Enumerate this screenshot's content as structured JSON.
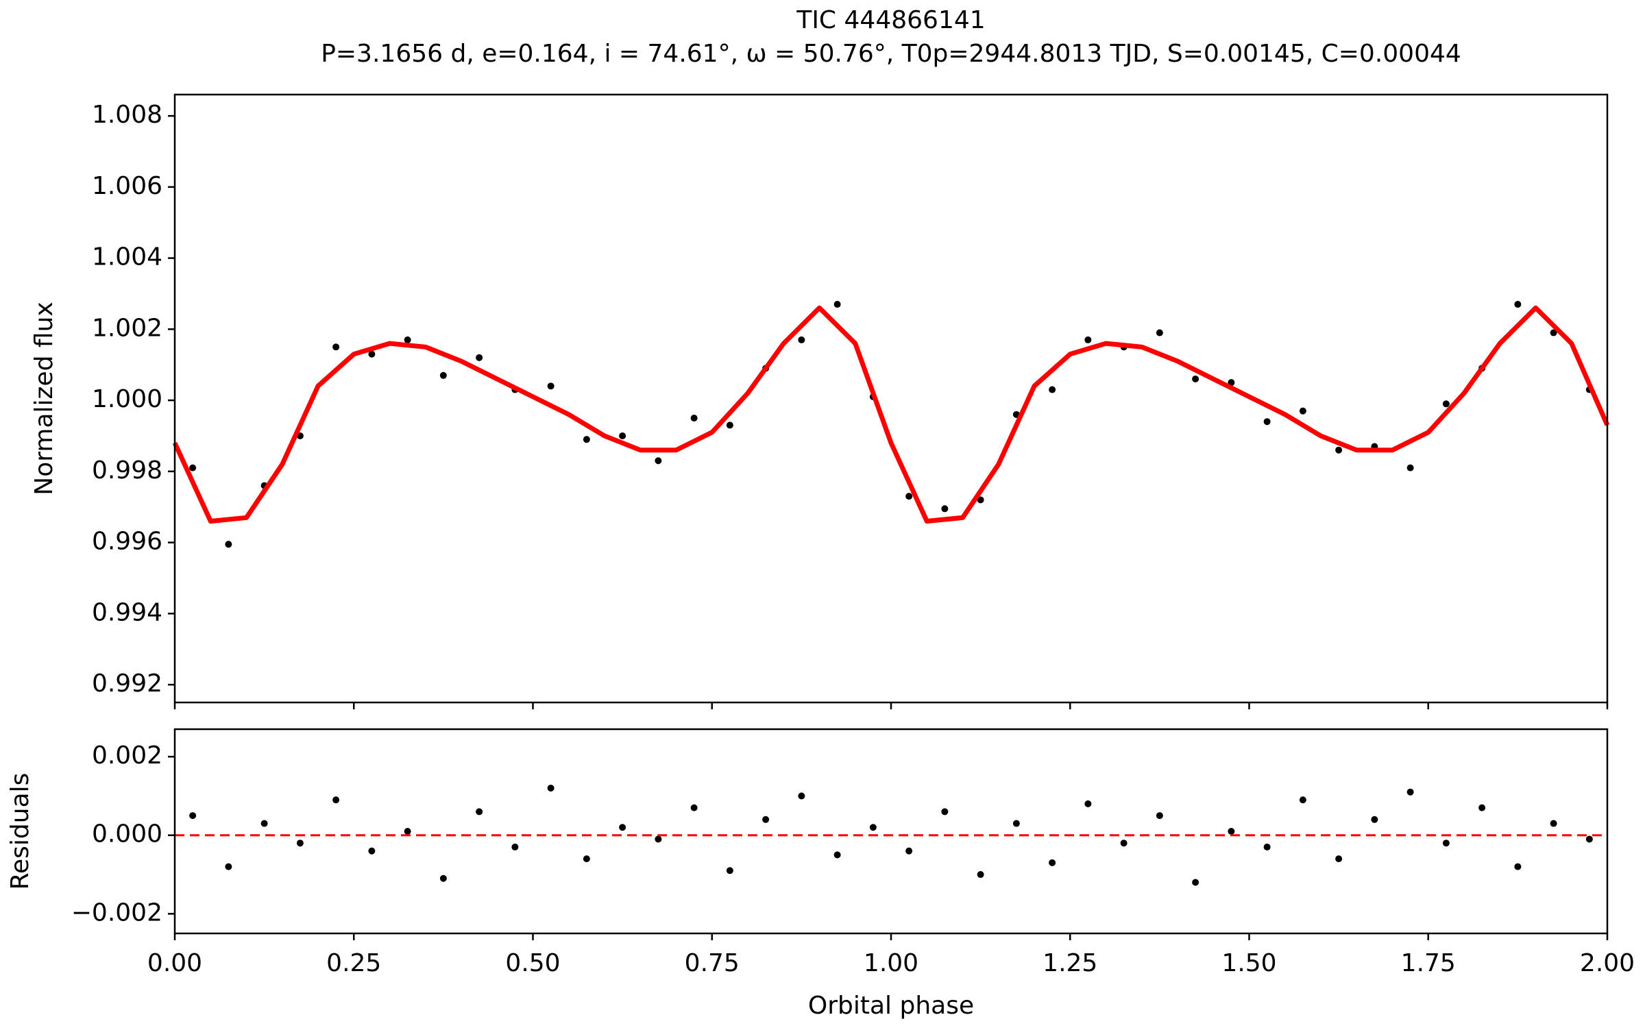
{
  "chart_data": [
    {
      "type": "scatter",
      "title": "TIC 444866141",
      "subtitle": "P=3.1656 d, e=0.164, i = 74.61°, ω = 50.76°, T0p=2944.8013 TJD, S=0.00145, C=0.00044",
      "y_label": "Normalized flux",
      "xlim": [
        0,
        2
      ],
      "ylim": [
        0.9915,
        1.0086
      ],
      "xticks": [
        0,
        0.25,
        0.5,
        0.75,
        1,
        1.25,
        1.5,
        1.75,
        2
      ],
      "yticks": [
        {
          "value": 0.992,
          "label": "0.992"
        },
        {
          "value": 0.994,
          "label": "0.994"
        },
        {
          "value": 0.996,
          "label": "0.996"
        },
        {
          "value": 0.998,
          "label": "0.998"
        },
        {
          "value": 1.0,
          "label": "1.000"
        },
        {
          "value": 1.002,
          "label": "1.002"
        },
        {
          "value": 1.004,
          "label": "1.004"
        },
        {
          "value": 1.006,
          "label": "1.006"
        },
        {
          "value": 1.008,
          "label": "1.008"
        }
      ],
      "series": [
        {
          "type": "scatter",
          "color": "#000000",
          "x": [
            0.025,
            0.075,
            0.125,
            0.175,
            0.225,
            0.275,
            0.325,
            0.375,
            0.425,
            0.475,
            0.525,
            0.575,
            0.625,
            0.675,
            0.725,
            0.775,
            0.825,
            0.875,
            0.925,
            0.975,
            1.025,
            1.075,
            1.125,
            1.175,
            1.225,
            1.275,
            1.325,
            1.375,
            1.425,
            1.475,
            1.525,
            1.575,
            1.625,
            1.675,
            1.725,
            1.775,
            1.825,
            1.875,
            1.925,
            1.975
          ],
          "values": [
            0.9981,
            0.99595,
            0.9976,
            0.999,
            1.0015,
            1.0013,
            1.0017,
            1.0007,
            1.0012,
            1.0003,
            1.0004,
            0.9989,
            0.999,
            0.9983,
            0.9995,
            0.9993,
            1.0009,
            1.0017,
            1.0027,
            1.0001,
            0.9973,
            0.99695,
            0.9972,
            0.9996,
            1.0003,
            1.0017,
            1.0015,
            1.0019,
            1.0006,
            1.0005,
            0.9994,
            0.9997,
            0.9986,
            0.9987,
            0.9981,
            0.9999,
            1.0009,
            1.0027,
            1.0019,
            1.0003
          ]
        },
        {
          "type": "line",
          "color": "#ff0000",
          "x": [
            0,
            0.05,
            0.1,
            0.15,
            0.2,
            0.25,
            0.3,
            0.35,
            0.4,
            0.45,
            0.5,
            0.55,
            0.6,
            0.65,
            0.7,
            0.75,
            0.8,
            0.85,
            0.9,
            0.95,
            1,
            1.05,
            1.1,
            1.15,
            1.2,
            1.25,
            1.3,
            1.35,
            1.4,
            1.45,
            1.5,
            1.55,
            1.6,
            1.65,
            1.7,
            1.75,
            1.8,
            1.85,
            1.9,
            1.95,
            2
          ],
          "values": [
            0.9988,
            0.9966,
            0.9967,
            0.9982,
            1.0004,
            1.0013,
            1.0016,
            1.0015,
            1.0011,
            1.0006,
            1.0001,
            0.9996,
            0.999,
            0.9986,
            0.9986,
            0.9991,
            1.0002,
            1.0016,
            1.0026,
            1.0016,
            0.9988,
            0.9966,
            0.9967,
            0.9982,
            1.0004,
            1.0013,
            1.0016,
            1.0015,
            1.0011,
            1.0006,
            1.0001,
            0.9996,
            0.999,
            0.9986,
            0.9986,
            0.9991,
            1.0002,
            1.0016,
            1.0026,
            1.0016,
            0.9993
          ]
        }
      ]
    },
    {
      "type": "scatter",
      "y_label": "Residuals",
      "x_label": "Orbital phase",
      "xlim": [
        0,
        2
      ],
      "ylim": [
        -0.0025,
        0.0027
      ],
      "xticks": [
        {
          "value": 0,
          "label": "0.00"
        },
        {
          "value": 0.25,
          "label": "0.25"
        },
        {
          "value": 0.5,
          "label": "0.50"
        },
        {
          "value": 0.75,
          "label": "0.75"
        },
        {
          "value": 1,
          "label": "1.00"
        },
        {
          "value": 1.25,
          "label": "1.25"
        },
        {
          "value": 1.5,
          "label": "1.50"
        },
        {
          "value": 1.75,
          "label": "1.75"
        },
        {
          "value": 2,
          "label": "2.00"
        }
      ],
      "yticks": [
        {
          "value": -0.002,
          "label": "−0.002"
        },
        {
          "value": 0,
          "label": "0.000"
        },
        {
          "value": 0.002,
          "label": "0.002"
        }
      ],
      "hline": {
        "value": 0,
        "color": "#ff0000"
      },
      "series": [
        {
          "type": "scatter",
          "color": "#000000",
          "x": [
            0.025,
            0.075,
            0.125,
            0.175,
            0.225,
            0.275,
            0.325,
            0.375,
            0.425,
            0.475,
            0.525,
            0.575,
            0.625,
            0.675,
            0.725,
            0.775,
            0.825,
            0.875,
            0.925,
            0.975,
            1.025,
            1.075,
            1.125,
            1.175,
            1.225,
            1.275,
            1.325,
            1.375,
            1.425,
            1.475,
            1.525,
            1.575,
            1.625,
            1.675,
            1.725,
            1.775,
            1.825,
            1.875,
            1.925,
            1.975
          ],
          "values": [
            0.0005,
            -0.0008,
            0.0003,
            -0.0002,
            0.0009,
            -0.0004,
            0.0001,
            -0.0011,
            0.0006,
            -0.0003,
            0.0012,
            -0.0006,
            0.0002,
            -0.0001,
            0.0007,
            -0.0009,
            0.0004,
            0.001,
            -0.0005,
            0.0002,
            -0.0004,
            0.0006,
            -0.001,
            0.0003,
            -0.0007,
            0.0008,
            -0.0002,
            0.0005,
            -0.0012,
            0.0001,
            -0.0003,
            0.0009,
            -0.0006,
            0.0004,
            0.0011,
            -0.0002,
            0.0007,
            -0.0008,
            0.0003,
            -0.0001
          ]
        }
      ]
    }
  ]
}
